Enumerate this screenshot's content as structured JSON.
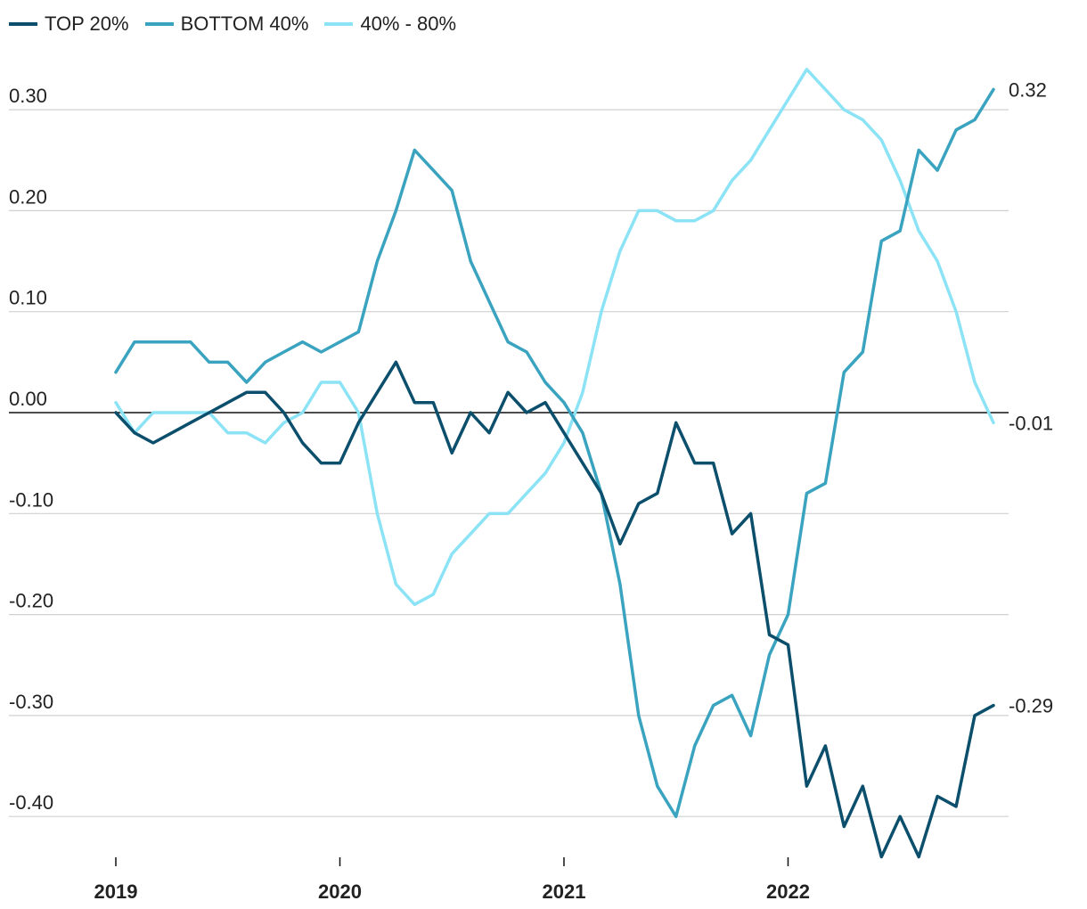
{
  "chart_data": {
    "type": "line",
    "title": "",
    "xlabel": "",
    "ylabel": "",
    "ylim": [
      -0.44,
      0.34
    ],
    "y_ticks": [
      "0.30",
      "0.20",
      "0.10",
      "0.00",
      "-0.10",
      "-0.20",
      "-0.30",
      "-0.40"
    ],
    "y_tick_values": [
      0.3,
      0.2,
      0.1,
      0.0,
      -0.1,
      -0.2,
      -0.3,
      -0.4
    ],
    "x_ticks": [
      "2019",
      "2020",
      "2021",
      "2022"
    ],
    "x_tick_index": [
      0,
      12,
      24,
      36
    ],
    "grid": true,
    "legend_position": "top-left",
    "series": [
      {
        "name": "TOP 20%",
        "color": "#0b4f6c",
        "end_label": "-0.29",
        "values": [
          0.0,
          -0.02,
          -0.03,
          -0.02,
          -0.01,
          0.0,
          0.01,
          0.02,
          0.02,
          0.0,
          -0.03,
          -0.05,
          -0.05,
          -0.01,
          0.02,
          0.05,
          0.01,
          0.01,
          -0.04,
          0.0,
          -0.02,
          0.02,
          0.0,
          0.01,
          -0.02,
          -0.05,
          -0.08,
          -0.13,
          -0.09,
          -0.08,
          -0.01,
          -0.05,
          -0.05,
          -0.12,
          -0.1,
          -0.22,
          -0.23,
          -0.37,
          -0.33,
          -0.41,
          -0.37,
          -0.44,
          -0.4,
          -0.44,
          -0.38,
          -0.39,
          -0.3,
          -0.29
        ]
      },
      {
        "name": "BOTTOM 40%",
        "color": "#3aa3bf",
        "end_label": "0.32",
        "values": [
          0.04,
          0.07,
          0.07,
          0.07,
          0.07,
          0.05,
          0.05,
          0.03,
          0.05,
          0.06,
          0.07,
          0.06,
          0.07,
          0.08,
          0.15,
          0.2,
          0.26,
          0.24,
          0.22,
          0.15,
          0.11,
          0.07,
          0.06,
          0.03,
          0.01,
          -0.02,
          -0.08,
          -0.17,
          -0.3,
          -0.37,
          -0.4,
          -0.33,
          -0.29,
          -0.28,
          -0.32,
          -0.24,
          -0.2,
          -0.08,
          -0.07,
          0.04,
          0.06,
          0.17,
          0.18,
          0.26,
          0.24,
          0.28,
          0.29,
          0.32
        ]
      },
      {
        "name": "40% - 80%",
        "color": "#8be3f5",
        "end_label": "-0.01",
        "values": [
          0.01,
          -0.02,
          0.0,
          0.0,
          0.0,
          0.0,
          -0.02,
          -0.02,
          -0.03,
          -0.01,
          0.0,
          0.03,
          0.03,
          0.0,
          -0.1,
          -0.17,
          -0.19,
          -0.18,
          -0.14,
          -0.12,
          -0.1,
          -0.1,
          -0.08,
          -0.06,
          -0.03,
          0.02,
          0.1,
          0.16,
          0.2,
          0.2,
          0.19,
          0.19,
          0.2,
          0.23,
          0.25,
          0.28,
          0.31,
          0.34,
          0.32,
          0.3,
          0.29,
          0.27,
          0.23,
          0.18,
          0.15,
          0.1,
          0.03,
          -0.01
        ]
      }
    ]
  }
}
